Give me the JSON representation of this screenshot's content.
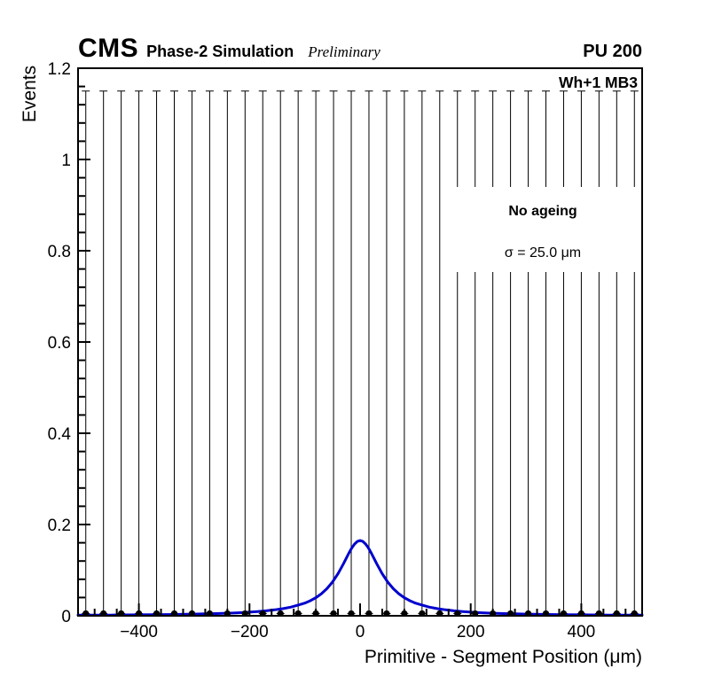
{
  "header": {
    "experiment": "CMS",
    "campaign": "Phase-2 Simulation",
    "preliminary": "Preliminary",
    "pileup": "PU 200"
  },
  "plot": {
    "region_label": "Wh+1 MB3",
    "annotation": {
      "line1": "No ageing",
      "line2": "σ = 25.0 μm"
    },
    "xlabel": "Primitive - Segment Position (μm)",
    "ylabel": "Events"
  },
  "chart_data": {
    "type": "line",
    "title": "",
    "xlabel": "Primitive - Segment Position (μm)",
    "ylabel": "Events",
    "xlim": [
      -510,
      510
    ],
    "ylim": [
      0,
      1.2
    ],
    "x_ticks": [
      -400,
      -200,
      0,
      200,
      400
    ],
    "x_tick_labels": [
      "−400",
      "−200",
      "0",
      "200",
      "400"
    ],
    "x_minor_step": 40,
    "y_ticks": [
      0,
      0.2,
      0.4,
      0.6,
      0.8,
      1,
      1.2
    ],
    "y_tick_labels": [
      "0",
      "0.2",
      "0.4",
      "0.6",
      "0.8",
      "1",
      "1.2"
    ],
    "y_minor_step": 0.04,
    "grid": false,
    "legend_position": "none",
    "series": [
      {
        "name": "data-points",
        "type": "scatter-with-errors",
        "color": "#000000",
        "marker": "filled-circle",
        "bin_centers": [
          -496,
          -464,
          -432,
          -400,
          -368,
          -336,
          -304,
          -272,
          -240,
          -208,
          -176,
          -144,
          -112,
          -80,
          -48,
          -16,
          16,
          48,
          80,
          112,
          144,
          176,
          208,
          240,
          272,
          304,
          336,
          368,
          400,
          432,
          464,
          496
        ],
        "value": 0.005,
        "error_low": 0,
        "error_high": 1.15
      },
      {
        "name": "fit-curve",
        "type": "line",
        "color": "#0000cd",
        "width": 3,
        "peak": {
          "x": 0,
          "y": 0.165
        },
        "sigma_label": "σ = 25.0 μm",
        "points": [
          [
            -510,
            0.0013
          ],
          [
            -450,
            0.0016
          ],
          [
            -400,
            0.0021
          ],
          [
            -350,
            0.0027
          ],
          [
            -300,
            0.0036
          ],
          [
            -280,
            0.0042
          ],
          [
            -260,
            0.0048
          ],
          [
            -240,
            0.0056
          ],
          [
            -220,
            0.0066
          ],
          [
            -200,
            0.008
          ],
          [
            -185,
            0.0093
          ],
          [
            -170,
            0.0109
          ],
          [
            -155,
            0.013
          ],
          [
            -140,
            0.0155
          ],
          [
            -125,
            0.019
          ],
          [
            -110,
            0.024
          ],
          [
            -100,
            0.0278
          ],
          [
            -90,
            0.033
          ],
          [
            -80,
            0.0397
          ],
          [
            -70,
            0.0483
          ],
          [
            -60,
            0.0594
          ],
          [
            -50,
            0.0738
          ],
          [
            -40,
            0.0922
          ],
          [
            -30,
            0.1142
          ],
          [
            -25,
            0.1261
          ],
          [
            -20,
            0.1378
          ],
          [
            -15,
            0.1485
          ],
          [
            -10,
            0.1572
          ],
          [
            -5,
            0.163
          ],
          [
            0,
            0.165
          ],
          [
            5,
            0.163
          ],
          [
            10,
            0.1572
          ],
          [
            15,
            0.1485
          ],
          [
            20,
            0.1378
          ],
          [
            25,
            0.1261
          ],
          [
            30,
            0.1142
          ],
          [
            40,
            0.0922
          ],
          [
            50,
            0.0738
          ],
          [
            60,
            0.0594
          ],
          [
            70,
            0.0483
          ],
          [
            80,
            0.0397
          ],
          [
            90,
            0.033
          ],
          [
            100,
            0.0278
          ],
          [
            110,
            0.024
          ],
          [
            125,
            0.019
          ],
          [
            140,
            0.0155
          ],
          [
            155,
            0.013
          ],
          [
            170,
            0.0109
          ],
          [
            185,
            0.0093
          ],
          [
            200,
            0.008
          ],
          [
            220,
            0.0066
          ],
          [
            240,
            0.0056
          ],
          [
            260,
            0.0048
          ],
          [
            280,
            0.0042
          ],
          [
            300,
            0.0036
          ],
          [
            350,
            0.0027
          ],
          [
            400,
            0.0021
          ],
          [
            450,
            0.0016
          ],
          [
            510,
            0.0013
          ]
        ]
      }
    ]
  }
}
